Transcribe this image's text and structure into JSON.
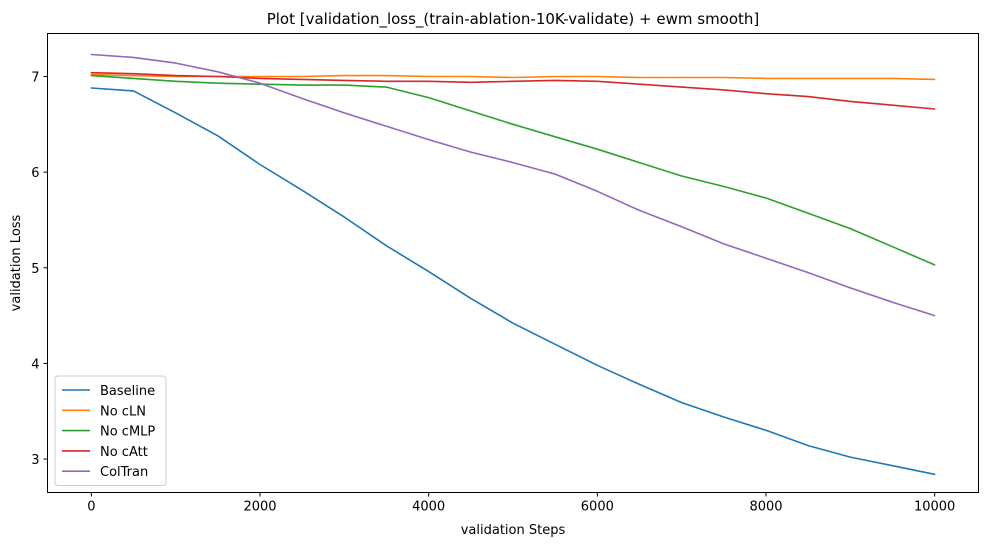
{
  "chart_data": {
    "type": "line",
    "title": "Plot [validation_loss_(train-ablation-10K-validate) + ewm smooth]",
    "xlabel": "validation Steps",
    "ylabel": "validation Loss",
    "xlim": [
      -520,
      10520
    ],
    "ylim": [
      2.65,
      7.45
    ],
    "xticks": [
      0,
      2000,
      4000,
      6000,
      8000,
      10000
    ],
    "yticks": [
      3,
      4,
      5,
      6,
      7
    ],
    "grid": false,
    "legend_position": "lower-left",
    "x": [
      0,
      500,
      1000,
      1500,
      2000,
      2500,
      3000,
      3500,
      4000,
      4500,
      5000,
      5500,
      6000,
      6500,
      7000,
      7500,
      8000,
      8500,
      9000,
      9500,
      10000
    ],
    "series": [
      {
        "name": "Baseline",
        "color": "#1f77b4",
        "values": [
          6.88,
          6.85,
          6.62,
          6.38,
          6.08,
          5.81,
          5.53,
          5.23,
          4.96,
          4.68,
          4.42,
          4.2,
          3.98,
          3.78,
          3.59,
          3.44,
          3.3,
          3.14,
          3.02,
          2.93,
          2.84
        ]
      },
      {
        "name": "No cLN",
        "color": "#ff7f0e",
        "values": [
          7.02,
          7.01,
          7.0,
          7.0,
          7.0,
          7.0,
          7.01,
          7.01,
          7.0,
          7.0,
          6.99,
          7.0,
          7.0,
          6.99,
          6.99,
          6.99,
          6.98,
          6.98,
          6.98,
          6.98,
          6.97
        ]
      },
      {
        "name": "No cMLP",
        "color": "#2ca02c",
        "values": [
          7.01,
          6.98,
          6.95,
          6.93,
          6.92,
          6.91,
          6.91,
          6.89,
          6.78,
          6.64,
          6.5,
          6.37,
          6.24,
          6.1,
          5.96,
          5.85,
          5.73,
          5.57,
          5.41,
          5.22,
          5.03
        ]
      },
      {
        "name": "No cAtt",
        "color": "#d62728",
        "values": [
          7.04,
          7.03,
          7.01,
          7.0,
          6.98,
          6.97,
          6.96,
          6.95,
          6.95,
          6.94,
          6.95,
          6.96,
          6.95,
          6.92,
          6.89,
          6.86,
          6.82,
          6.79,
          6.74,
          6.7,
          6.66
        ]
      },
      {
        "name": "ColTran",
        "color": "#9467bd",
        "values": [
          7.23,
          7.2,
          7.14,
          7.05,
          6.93,
          6.77,
          6.62,
          6.48,
          6.34,
          6.21,
          6.1,
          5.98,
          5.8,
          5.6,
          5.43,
          5.25,
          5.1,
          4.95,
          4.79,
          4.64,
          4.5
        ]
      }
    ]
  }
}
